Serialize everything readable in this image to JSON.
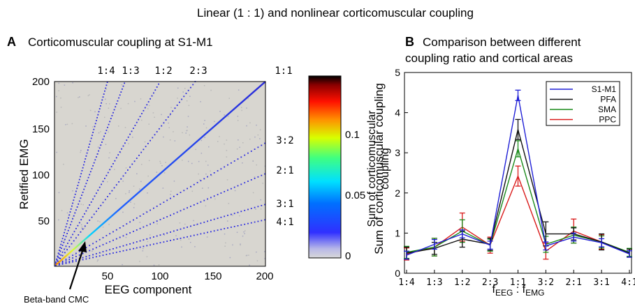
{
  "figure_title": "Linear (1 : 1) and nonlinear corticomuscular coupling",
  "panel_a": {
    "letter": "A",
    "title": "Corticomuscular coupling at S1-M1",
    "xlabel": "EEG component",
    "ylabel": "Retified EMG",
    "xticks": [
      "50",
      "100",
      "150",
      "200"
    ],
    "yticks": [
      "50",
      "100",
      "150",
      "200"
    ],
    "ratio_labels_top": [
      "1:4",
      "1:3",
      "1:2",
      "2:3",
      "1:1"
    ],
    "ratio_labels_right": [
      "3:2",
      "2:1",
      "3:1",
      "4:1"
    ],
    "annotation": "Beta-band CMC",
    "colorbar_label": "Sum of corticomuscular coupling",
    "colorbar_ticks": [
      "0.1",
      "0.05",
      "0"
    ]
  },
  "panel_b": {
    "letter": "B",
    "title_line1": "Comparison between different",
    "title_line2": "coupling ratio and cortical areas",
    "ylabel_line1": "Sum of corticomuscular",
    "ylabel_line2": "coupling",
    "xlabel_eeg": "EEG",
    "xlabel_sep": " : f",
    "xlabel_emg": "EMG",
    "xlabel_f": "f",
    "yticks": [
      "0",
      "1",
      "2",
      "3",
      "4",
      "5"
    ],
    "legend": [
      "S1-M1",
      "PFA",
      "SMA",
      "PPC"
    ]
  },
  "chart_data": [
    {
      "type": "heatmap",
      "title": "Corticomuscular coupling at S1-M1",
      "xlabel": "EEG component",
      "ylabel": "Retified EMG",
      "xlim": [
        1,
        200
      ],
      "ylim": [
        1,
        200
      ],
      "coupling_ratios": [
        "1:4",
        "1:3",
        "1:2",
        "2:3",
        "1:1",
        "3:2",
        "2:1",
        "3:1",
        "4:1"
      ],
      "colorbar": {
        "label": "Sum of corticomuscular coupling",
        "range": [
          0,
          0.14
        ],
        "ticks": [
          0,
          0.05,
          0.1
        ]
      },
      "annotation": "Beta-band CMC"
    },
    {
      "type": "line",
      "title": "Comparison between different coupling ratio and cortical areas",
      "ylabel": "Sum of corticomuscular coupling",
      "categories": [
        "1:4",
        "1:3",
        "1:2",
        "2:3",
        "1:1",
        "3:2",
        "2:1",
        "3:1",
        "4:1"
      ],
      "ylim": [
        0,
        5
      ],
      "legend_position": "top-right",
      "series": [
        {
          "name": "S1-M1",
          "color": "#1f1fd6",
          "values": [
            0.45,
            0.72,
            0.98,
            0.7,
            4.43,
            0.68,
            0.9,
            0.76,
            0.48
          ],
          "errors": [
            0.1,
            0.12,
            0.1,
            0.1,
            0.13,
            0.1,
            0.1,
            0.1,
            0.08
          ]
        },
        {
          "name": "PFA",
          "color": "#111111",
          "values": [
            0.5,
            0.62,
            0.85,
            0.72,
            3.58,
            0.98,
            0.98,
            0.78,
            0.5
          ],
          "errors": [
            0.15,
            0.15,
            0.2,
            0.15,
            0.25,
            0.3,
            0.15,
            0.2,
            0.1
          ]
        },
        {
          "name": "SMA",
          "color": "#1a8a1a",
          "values": [
            0.52,
            0.65,
            1.05,
            0.7,
            3.1,
            0.72,
            0.95,
            0.78,
            0.52
          ],
          "errors": [
            0.15,
            0.22,
            0.28,
            0.15,
            0.2,
            0.2,
            0.2,
            0.15,
            0.1
          ]
        },
        {
          "name": "PPC",
          "color": "#d91a1a",
          "values": [
            0.48,
            0.65,
            1.15,
            0.7,
            2.42,
            0.55,
            1.05,
            0.78,
            0.5
          ],
          "errors": [
            0.15,
            0.22,
            0.35,
            0.2,
            0.25,
            0.2,
            0.3,
            0.18,
            0.1
          ]
        }
      ]
    }
  ]
}
